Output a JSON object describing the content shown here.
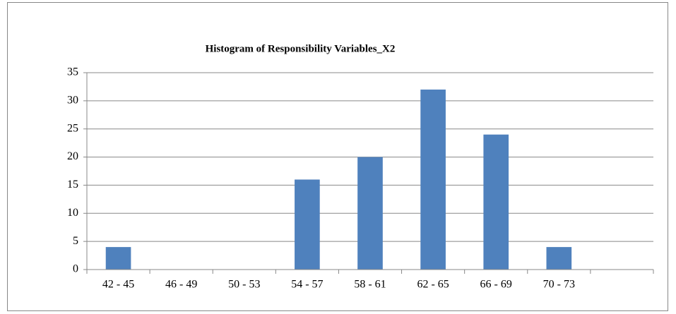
{
  "chart_data": {
    "type": "bar",
    "title": "Histogram of Responsibility Variables_X2",
    "categories": [
      "42 - 45",
      "46 - 49",
      "50 - 53",
      "54 - 57",
      "58 - 61",
      "62 - 65",
      "66 - 69",
      "70 - 73",
      null
    ],
    "values": [
      4,
      0,
      0,
      16,
      20,
      32,
      24,
      4,
      0
    ],
    "color": "#4f81bd",
    "ylim": [
      0,
      35
    ],
    "yticks": [
      0,
      5,
      10,
      15,
      20,
      25,
      30,
      35
    ],
    "grid": true
  }
}
